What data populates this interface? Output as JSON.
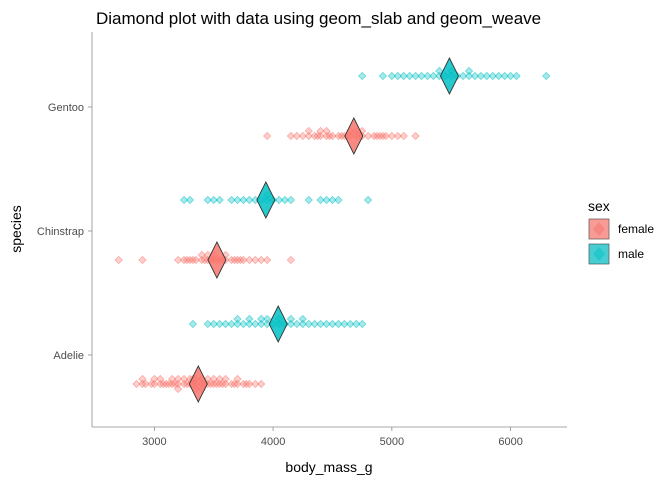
{
  "chart_data": {
    "type": "scatter",
    "title": "Diamond plot with data using geom_slab and geom_weave",
    "xlabel": "body_mass_g",
    "ylabel": "species",
    "xlim": [
      2475,
      6475
    ],
    "x_ticks": [
      3000,
      4000,
      5000,
      6000
    ],
    "x_tick_labels": [
      "3000",
      "4000",
      "5000",
      "6000"
    ],
    "categories": [
      "Adelie",
      "Chinstrap",
      "Gentoo"
    ],
    "grid": false,
    "legend": {
      "title": "sex",
      "position": "right",
      "entries": [
        {
          "label": "female",
          "color": "#F8766D"
        },
        {
          "label": "male",
          "color": "#00BFC4"
        }
      ]
    },
    "series": [
      {
        "name": "female",
        "color": "#F8766D",
        "groups": [
          {
            "species": "Adelie",
            "mean": 3370,
            "points": [
              2850,
              2900,
              2900,
              2925,
              2975,
              3000,
              3000,
              3050,
              3050,
              3075,
              3100,
              3125,
              3150,
              3150,
              3175,
              3200,
              3200,
              3200,
              3250,
              3250,
              3275,
              3300,
              3300,
              3325,
              3325,
              3350,
              3350,
              3350,
              3400,
              3400,
              3400,
              3425,
              3450,
              3450,
              3475,
              3500,
              3500,
              3525,
              3550,
              3550,
              3575,
              3600,
              3600,
              3650,
              3675,
              3700,
              3700,
              3750,
              3775,
              3800,
              3850,
              3900
            ]
          },
          {
            "species": "Chinstrap",
            "mean": 3527,
            "points": [
              2700,
              2900,
              3200,
              3250,
              3275,
              3300,
              3325,
              3350,
              3400,
              3400,
              3425,
              3450,
              3450,
              3475,
              3500,
              3500,
              3525,
              3550,
              3575,
              3600,
              3600,
              3650,
              3675,
              3700,
              3725,
              3750,
              3800,
              3850,
              3900,
              3950,
              4150
            ]
          },
          {
            "species": "Gentoo",
            "mean": 4680,
            "points": [
              3950,
              4150,
              4200,
              4250,
              4300,
              4300,
              4350,
              4375,
              4400,
              4400,
              4450,
              4450,
              4475,
              4500,
              4550,
              4575,
              4600,
              4625,
              4650,
              4650,
              4700,
              4700,
              4725,
              4750,
              4750,
              4800,
              4850,
              4875,
              4900,
              4925,
              4950,
              5000,
              5050,
              5100,
              5200
            ]
          }
        ]
      },
      {
        "name": "male",
        "color": "#00BFC4",
        "groups": [
          {
            "species": "Adelie",
            "mean": 4043,
            "points": [
              3325,
              3450,
              3500,
              3550,
              3600,
              3650,
              3700,
              3700,
              3750,
              3800,
              3800,
              3850,
              3900,
              3900,
              3950,
              3950,
              4000,
              4050,
              4050,
              4100,
              4150,
              4150,
              4200,
              4250,
              4250,
              4300,
              4350,
              4400,
              4450,
              4500,
              4550,
              4600,
              4650,
              4700,
              4750
            ]
          },
          {
            "species": "Chinstrap",
            "mean": 3939,
            "points": [
              3250,
              3300,
              3450,
              3500,
              3550,
              3650,
              3700,
              3750,
              3800,
              3850,
              3900,
              3950,
              3950,
              4000,
              4050,
              4100,
              4150,
              4300,
              4400,
              4450,
              4500,
              4550,
              4800
            ]
          },
          {
            "species": "Gentoo",
            "mean": 5485,
            "points": [
              4750,
              4925,
              5000,
              5050,
              5100,
              5150,
              5200,
              5250,
              5300,
              5350,
              5400,
              5400,
              5450,
              5500,
              5500,
              5550,
              5600,
              5650,
              5650,
              5700,
              5750,
              5800,
              5850,
              5900,
              5950,
              6000,
              6050,
              6300
            ]
          }
        ]
      }
    ]
  }
}
